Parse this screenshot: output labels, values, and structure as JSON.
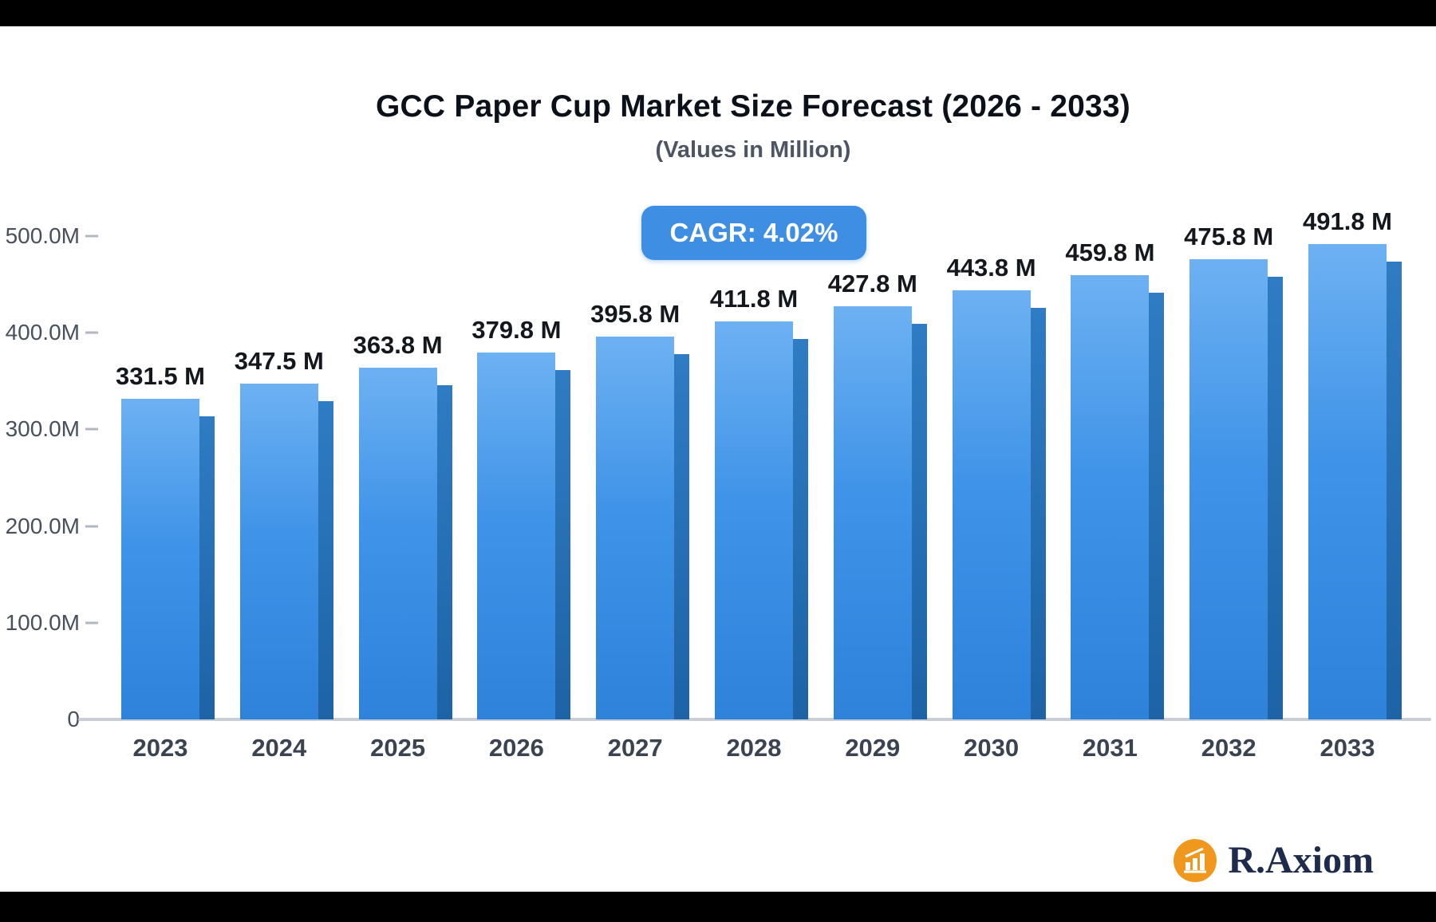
{
  "header": {
    "title": "GCC Paper Cup Market Size Forecast (2026 - 2033)",
    "subtitle": "(Values in Million)"
  },
  "cagr_badge": {
    "label": "CAGR: 4.02%",
    "background_color": "#3e8ee4"
  },
  "chart_data": {
    "type": "bar",
    "title": "GCC Paper Cup Market Size Forecast (2026 - 2033)",
    "subtitle": "(Values in Million)",
    "categories": [
      "2023",
      "2024",
      "2025",
      "2026",
      "2027",
      "2028",
      "2029",
      "2030",
      "2031",
      "2032",
      "2033"
    ],
    "values": [
      331.5,
      347.5,
      363.8,
      379.8,
      395.8,
      411.8,
      427.8,
      443.8,
      459.8,
      475.8,
      491.8
    ],
    "value_labels": [
      "331.5 M",
      "347.5 M",
      "363.8 M",
      "379.8 M",
      "395.8 M",
      "411.8 M",
      "427.8 M",
      "443.8 M",
      "459.8 M",
      "475.8 M",
      "491.8 M"
    ],
    "value_suffix": " M",
    "ylim": [
      0,
      500
    ],
    "y_tick_labels": [
      "500.0M",
      "400.0M",
      "300.0M",
      "200.0M",
      "100.0M",
      "0"
    ],
    "grid": false,
    "legend": "none",
    "cagr": "4.02%",
    "bar_colors": {
      "face_top": "#6db1f2",
      "face_bottom": "#2e82da",
      "side": "#1d63a6"
    }
  },
  "logo": {
    "text": "R.Axiom",
    "icon": "bar-chart-logo-icon",
    "icon_color": "#f0981e",
    "text_color": "#1e2b4d"
  }
}
